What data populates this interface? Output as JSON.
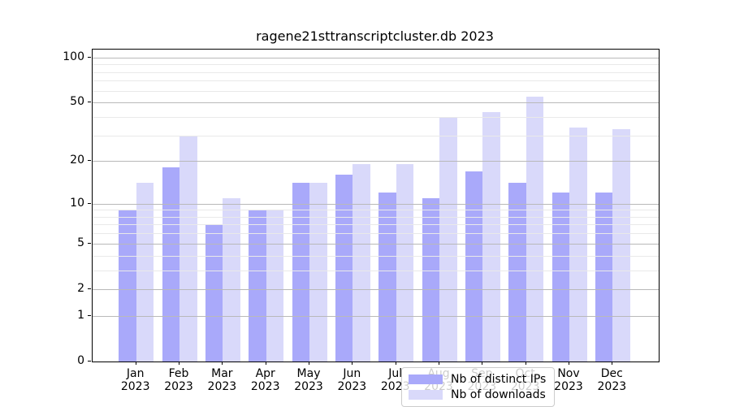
{
  "title": "ragene21sttranscriptcluster.db 2023",
  "chart_data": {
    "type": "bar",
    "title": "ragene21sttranscriptcluster.db 2023",
    "categories": [
      "Jan 2023",
      "Feb 2023",
      "Mar 2023",
      "Apr 2023",
      "May 2023",
      "Jun 2023",
      "Jul 2023",
      "Aug 2023",
      "Sep 2023",
      "Oct 2023",
      "Nov 2023",
      "Dec 2023"
    ],
    "series": [
      {
        "name": "Nb of distinct IPs",
        "color": "#a9a9fa",
        "values": [
          9,
          18,
          7,
          9,
          14,
          16,
          12,
          11,
          17,
          14,
          12,
          12
        ]
      },
      {
        "name": "Nb of downloads",
        "color": "#d9d9fa",
        "values": [
          14,
          30,
          11,
          9,
          14,
          19,
          19,
          40,
          43,
          55,
          34,
          33
        ]
      }
    ],
    "xlabel": "",
    "ylabel": "",
    "yscale": "log1p",
    "ylim": [
      0,
      113
    ],
    "ytick_values": [
      100,
      50,
      20,
      10,
      5,
      2,
      1,
      0
    ],
    "minor_gridline_values": [
      3,
      4,
      6,
      7,
      8,
      9,
      30,
      40,
      60,
      70,
      80,
      90
    ],
    "grid": true,
    "grid_above_bars": true,
    "legend_position": "lower center"
  },
  "legend": {
    "items": [
      {
        "label": "Nb of distinct IPs",
        "color": "#a9a9fa"
      },
      {
        "label": "Nb of downloads",
        "color": "#d9d9fa"
      }
    ]
  },
  "colors": {
    "background": "#ffffff",
    "spine": "#000000",
    "major_grid": "#b9b9b9",
    "minor_grid": "#e9e9e9",
    "text": "#000000"
  }
}
